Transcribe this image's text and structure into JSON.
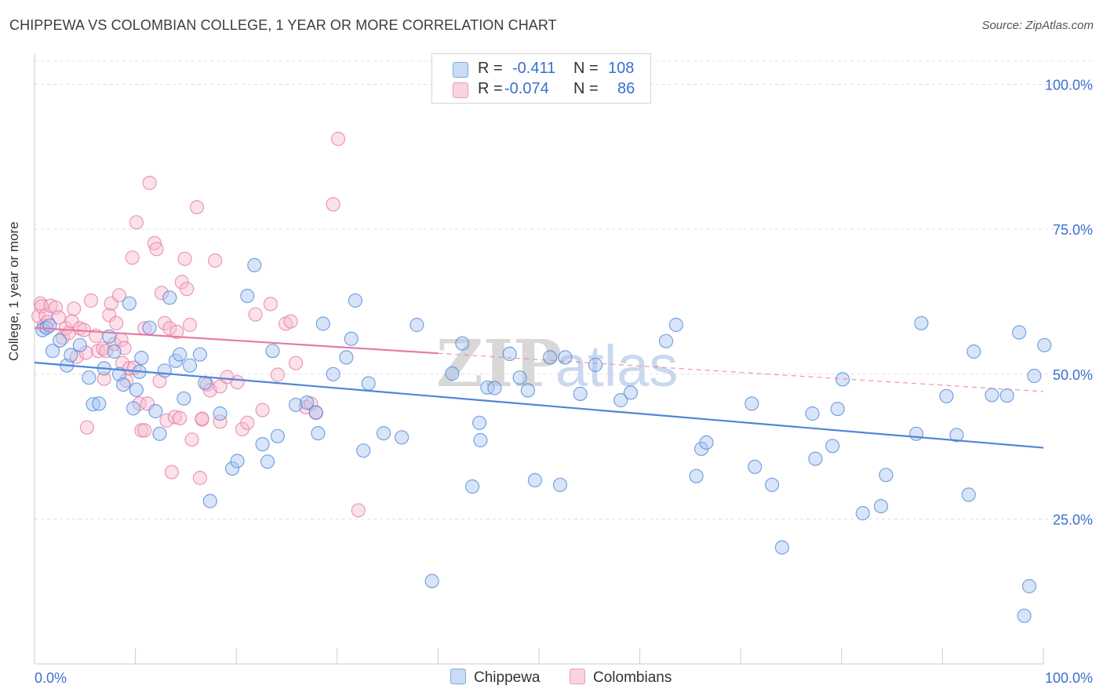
{
  "title": "CHIPPEWA VS COLOMBIAN COLLEGE, 1 YEAR OR MORE CORRELATION CHART",
  "source": "Source: ZipAtlas.com",
  "watermark": {
    "zip": "ZIP",
    "atlas": "atlas"
  },
  "legend": {
    "rows": [
      {
        "r_label": "R =",
        "r_value": "-0.411",
        "n_label": "N =",
        "n_value": "108",
        "color": "#7da9e6",
        "fill": "#c9dbf5"
      },
      {
        "r_label": "R =",
        "r_value": "-0.074",
        "n_label": "N =",
        "n_value": "86",
        "color": "#ef9ab5",
        "fill": "#f9d3df"
      }
    ]
  },
  "bottom_legend": [
    {
      "label": "Chippewa",
      "color": "#7da9e6",
      "fill": "#c9dbf5"
    },
    {
      "label": "Colombians",
      "color": "#ef9ab5",
      "fill": "#f9d3df"
    }
  ],
  "chart_data": {
    "type": "scatter",
    "title": "CHIPPEWA VS COLOMBIAN COLLEGE, 1 YEAR OR MORE CORRELATION CHART",
    "xlabel": "",
    "ylabel": "College, 1 year or more",
    "xlim": [
      0,
      100
    ],
    "ylim": [
      0,
      104
    ],
    "x_tick_labels": [
      "0.0%",
      "100.0%"
    ],
    "y_ticks": [
      25,
      50,
      75,
      100
    ],
    "y_tick_labels": [
      "25.0%",
      "50.0%",
      "75.0%",
      "100.0%"
    ],
    "grid": "horizontal dashed",
    "series": [
      {
        "name": "Chippewa",
        "color": "#4f86d8",
        "fill": "#a9c6ef",
        "trend": {
          "x": [
            0,
            100
          ],
          "y": [
            52.0,
            37.3
          ],
          "solid_until": 100
        },
        "points": [
          [
            0.8,
            57.6
          ],
          [
            1.2,
            58.0
          ],
          [
            1.5,
            58.4
          ],
          [
            1.8,
            54.0
          ],
          [
            2.5,
            55.8
          ],
          [
            3.2,
            51.5
          ],
          [
            3.6,
            53.3
          ],
          [
            4.5,
            55.0
          ],
          [
            5.4,
            49.4
          ],
          [
            5.8,
            44.8
          ],
          [
            6.4,
            44.9
          ],
          [
            6.9,
            51.0
          ],
          [
            7.4,
            56.5
          ],
          [
            7.9,
            53.9
          ],
          [
            8.4,
            50.0
          ],
          [
            8.8,
            48.2
          ],
          [
            9.4,
            62.2
          ],
          [
            9.8,
            44.1
          ],
          [
            10.1,
            47.3
          ],
          [
            10.6,
            52.8
          ],
          [
            10.4,
            50.4
          ],
          [
            11.4,
            58.0
          ],
          [
            12.0,
            43.6
          ],
          [
            12.4,
            39.7
          ],
          [
            12.9,
            50.6
          ],
          [
            13.4,
            63.2
          ],
          [
            14.0,
            52.3
          ],
          [
            14.4,
            53.4
          ],
          [
            14.8,
            45.8
          ],
          [
            15.4,
            51.5
          ],
          [
            16.4,
            53.4
          ],
          [
            16.9,
            48.5
          ],
          [
            17.4,
            28.1
          ],
          [
            18.4,
            43.2
          ],
          [
            19.6,
            33.7
          ],
          [
            20.1,
            35.0
          ],
          [
            21.1,
            63.5
          ],
          [
            21.8,
            68.8
          ],
          [
            22.6,
            37.9
          ],
          [
            23.1,
            34.9
          ],
          [
            23.6,
            54.0
          ],
          [
            24.1,
            39.3
          ],
          [
            25.9,
            44.7
          ],
          [
            27.0,
            45.1
          ],
          [
            27.9,
            43.4
          ],
          [
            28.1,
            39.8
          ],
          [
            28.6,
            58.7
          ],
          [
            29.6,
            50.0
          ],
          [
            30.9,
            52.9
          ],
          [
            31.4,
            56.1
          ],
          [
            31.8,
            62.7
          ],
          [
            32.6,
            36.8
          ],
          [
            33.1,
            48.4
          ],
          [
            34.6,
            39.8
          ],
          [
            36.4,
            39.1
          ],
          [
            37.9,
            58.5
          ],
          [
            39.4,
            14.3
          ],
          [
            41.4,
            50.1
          ],
          [
            42.4,
            55.3
          ],
          [
            43.4,
            30.6
          ],
          [
            44.1,
            41.6
          ],
          [
            44.2,
            38.6
          ],
          [
            44.9,
            47.7
          ],
          [
            45.6,
            47.6
          ],
          [
            47.1,
            53.5
          ],
          [
            48.1,
            49.4
          ],
          [
            48.9,
            47.2
          ],
          [
            49.6,
            31.7
          ],
          [
            51.1,
            52.9
          ],
          [
            52.1,
            30.9
          ],
          [
            52.6,
            52.9
          ],
          [
            54.1,
            46.6
          ],
          [
            55.6,
            51.6
          ],
          [
            58.1,
            45.5
          ],
          [
            59.1,
            46.8
          ],
          [
            62.6,
            55.7
          ],
          [
            63.6,
            58.5
          ],
          [
            65.6,
            32.4
          ],
          [
            66.1,
            37.1
          ],
          [
            66.6,
            38.2
          ],
          [
            71.1,
            44.9
          ],
          [
            71.4,
            34.0
          ],
          [
            73.1,
            30.9
          ],
          [
            74.1,
            20.1
          ],
          [
            77.1,
            43.2
          ],
          [
            77.4,
            35.4
          ],
          [
            79.1,
            37.6
          ],
          [
            79.6,
            44.0
          ],
          [
            80.1,
            49.1
          ],
          [
            82.1,
            26.0
          ],
          [
            83.9,
            27.2
          ],
          [
            84.4,
            32.6
          ],
          [
            87.4,
            39.7
          ],
          [
            87.9,
            58.8
          ],
          [
            90.4,
            46.2
          ],
          [
            91.4,
            39.5
          ],
          [
            92.6,
            29.2
          ],
          [
            93.1,
            53.9
          ],
          [
            94.9,
            46.4
          ],
          [
            96.4,
            46.3
          ],
          [
            97.6,
            57.2
          ],
          [
            98.6,
            13.4
          ],
          [
            98.1,
            8.3
          ],
          [
            99.1,
            49.7
          ],
          [
            100.1,
            55.0
          ]
        ]
      },
      {
        "name": "Colombians",
        "color": "#e67aa0",
        "fill": "#f6bcd0",
        "trend": {
          "x": [
            0,
            100
          ],
          "y": [
            58.0,
            47.0
          ],
          "solid_until": 40
        },
        "points": [
          [
            0.4,
            60.0
          ],
          [
            0.6,
            62.2
          ],
          [
            0.7,
            61.7
          ],
          [
            0.9,
            58.3
          ],
          [
            1.1,
            60.1
          ],
          [
            1.3,
            59.0
          ],
          [
            1.6,
            61.8
          ],
          [
            2.1,
            61.5
          ],
          [
            2.4,
            59.8
          ],
          [
            2.8,
            56.3
          ],
          [
            3.1,
            57.9
          ],
          [
            3.4,
            57.1
          ],
          [
            3.7,
            59.1
          ],
          [
            3.9,
            61.3
          ],
          [
            4.2,
            53.0
          ],
          [
            4.5,
            57.9
          ],
          [
            4.9,
            57.6
          ],
          [
            5.1,
            53.7
          ],
          [
            5.2,
            40.8
          ],
          [
            5.6,
            62.7
          ],
          [
            6.1,
            56.6
          ],
          [
            6.3,
            54.0
          ],
          [
            6.8,
            54.4
          ],
          [
            6.9,
            49.2
          ],
          [
            7.1,
            54.0
          ],
          [
            7.4,
            60.2
          ],
          [
            7.6,
            62.2
          ],
          [
            7.9,
            55.2
          ],
          [
            8.1,
            58.8
          ],
          [
            8.4,
            63.6
          ],
          [
            8.6,
            55.9
          ],
          [
            8.7,
            51.9
          ],
          [
            8.9,
            54.5
          ],
          [
            9.1,
            48.9
          ],
          [
            9.4,
            51.0
          ],
          [
            9.9,
            51.1
          ],
          [
            9.7,
            70.1
          ],
          [
            10.1,
            76.2
          ],
          [
            10.4,
            44.9
          ],
          [
            10.6,
            40.3
          ],
          [
            10.9,
            57.9
          ],
          [
            10.9,
            40.3
          ],
          [
            11.2,
            44.9
          ],
          [
            11.4,
            83.0
          ],
          [
            11.9,
            72.6
          ],
          [
            12.1,
            71.6
          ],
          [
            12.4,
            48.8
          ],
          [
            12.6,
            64.0
          ],
          [
            12.9,
            58.8
          ],
          [
            13.1,
            42.0
          ],
          [
            13.4,
            57.9
          ],
          [
            13.6,
            33.1
          ],
          [
            13.9,
            42.6
          ],
          [
            14.1,
            57.3
          ],
          [
            14.4,
            42.4
          ],
          [
            14.6,
            65.9
          ],
          [
            14.9,
            69.9
          ],
          [
            15.1,
            64.7
          ],
          [
            15.4,
            58.5
          ],
          [
            15.6,
            38.7
          ],
          [
            16.1,
            78.8
          ],
          [
            16.4,
            32.1
          ],
          [
            16.6,
            42.2
          ],
          [
            17.1,
            48.2
          ],
          [
            17.4,
            47.2
          ],
          [
            17.9,
            69.6
          ],
          [
            18.4,
            47.9
          ],
          [
            19.1,
            49.5
          ],
          [
            20.1,
            48.6
          ],
          [
            21.9,
            60.3
          ],
          [
            23.4,
            62.1
          ],
          [
            24.1,
            49.9
          ],
          [
            24.9,
            58.7
          ],
          [
            25.4,
            59.1
          ],
          [
            25.9,
            51.9
          ],
          [
            26.9,
            44.3
          ],
          [
            27.4,
            44.9
          ],
          [
            27.9,
            43.3
          ],
          [
            29.6,
            79.3
          ],
          [
            30.1,
            90.6
          ],
          [
            32.1,
            26.5
          ],
          [
            16.6,
            42.3
          ],
          [
            18.4,
            41.8
          ],
          [
            20.6,
            40.5
          ],
          [
            21.1,
            41.6
          ],
          [
            22.6,
            43.8
          ]
        ]
      }
    ]
  }
}
